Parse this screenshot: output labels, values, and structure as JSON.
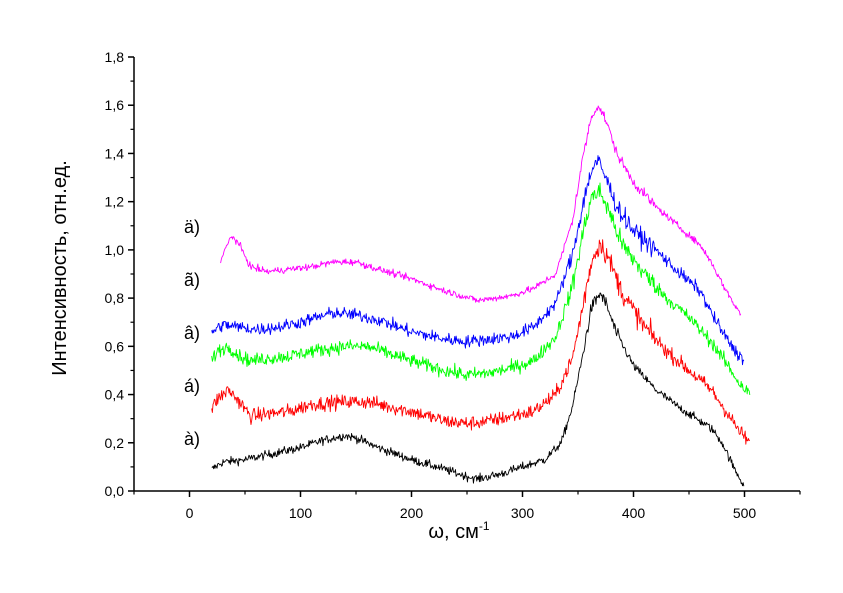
{
  "chart_data": {
    "type": "line",
    "xlabel": "ω, см",
    "xlabel_sup": "-1",
    "ylabel": "Интенсивность, отн.ед.",
    "xlim": [
      -50,
      550
    ],
    "ylim": [
      0,
      1.8
    ],
    "xticks": [
      0,
      100,
      200,
      300,
      400,
      500
    ],
    "xtick_labels": [
      "0",
      "100",
      "200",
      "300",
      "400",
      "500"
    ],
    "yticks": [
      0,
      0.2,
      0.4,
      0.6,
      0.8,
      1.0,
      1.2,
      1.4,
      1.6,
      1.8
    ],
    "ytick_labels": [
      "0,0",
      "0,2",
      "0,4",
      "0,6",
      "0,8",
      "1,0",
      "1,2",
      "1,4",
      "1,6",
      "1,8"
    ],
    "grid": false,
    "legend": "none",
    "series": [
      {
        "label": "à)",
        "color": "#000000",
        "label_x": -5,
        "label_y": 0.19,
        "noise": 0.018,
        "x": [
          20,
          30,
          50,
          70,
          100,
          120,
          140,
          150,
          170,
          200,
          230,
          250,
          260,
          280,
          300,
          320,
          335,
          345,
          355,
          362,
          370,
          375,
          385,
          400,
          420,
          440,
          460,
          470,
          480,
          490,
          500
        ],
        "y": [
          0.09,
          0.12,
          0.13,
          0.15,
          0.18,
          0.21,
          0.23,
          0.22,
          0.18,
          0.13,
          0.09,
          0.06,
          0.05,
          0.07,
          0.1,
          0.13,
          0.2,
          0.35,
          0.58,
          0.76,
          0.82,
          0.78,
          0.65,
          0.52,
          0.42,
          0.35,
          0.29,
          0.26,
          0.2,
          0.1,
          0.02
        ]
      },
      {
        "label": "á)",
        "color": "#ff0000",
        "label_x": -5,
        "label_y": 0.41,
        "noise": 0.03,
        "x": [
          20,
          25,
          35,
          45,
          55,
          70,
          90,
          110,
          140,
          160,
          180,
          200,
          230,
          250,
          270,
          290,
          310,
          330,
          345,
          355,
          362,
          370,
          378,
          390,
          410,
          430,
          450,
          470,
          485,
          495,
          505
        ],
        "y": [
          0.34,
          0.38,
          0.42,
          0.37,
          0.31,
          0.32,
          0.33,
          0.36,
          0.37,
          0.37,
          0.35,
          0.33,
          0.29,
          0.28,
          0.29,
          0.31,
          0.33,
          0.4,
          0.55,
          0.78,
          0.95,
          1.03,
          0.96,
          0.82,
          0.68,
          0.58,
          0.5,
          0.42,
          0.32,
          0.25,
          0.2
        ]
      },
      {
        "label": "â)",
        "color": "#00ff00",
        "label_x": -5,
        "label_y": 0.63,
        "noise": 0.028,
        "x": [
          20,
          25,
          35,
          45,
          55,
          70,
          90,
          110,
          140,
          160,
          180,
          200,
          230,
          250,
          270,
          290,
          310,
          330,
          345,
          355,
          362,
          370,
          378,
          390,
          410,
          430,
          450,
          470,
          485,
          495,
          505
        ],
        "y": [
          0.54,
          0.58,
          0.6,
          0.56,
          0.54,
          0.55,
          0.56,
          0.58,
          0.6,
          0.6,
          0.57,
          0.54,
          0.5,
          0.48,
          0.49,
          0.51,
          0.54,
          0.64,
          0.85,
          1.08,
          1.22,
          1.24,
          1.16,
          1.02,
          0.9,
          0.8,
          0.72,
          0.62,
          0.52,
          0.45,
          0.4
        ]
      },
      {
        "label": "ã)",
        "color": "#0000ff",
        "label_x": -5,
        "label_y": 0.85,
        "noise": 0.026,
        "x": [
          20,
          30,
          45,
          60,
          80,
          100,
          130,
          150,
          170,
          200,
          230,
          250,
          270,
          290,
          310,
          330,
          345,
          355,
          362,
          368,
          375,
          385,
          400,
          420,
          440,
          460,
          470,
          480,
          490,
          500
        ],
        "y": [
          0.66,
          0.69,
          0.68,
          0.67,
          0.68,
          0.7,
          0.74,
          0.73,
          0.71,
          0.66,
          0.63,
          0.62,
          0.63,
          0.64,
          0.68,
          0.78,
          0.98,
          1.2,
          1.33,
          1.37,
          1.3,
          1.18,
          1.08,
          1.0,
          0.91,
          0.83,
          0.74,
          0.66,
          0.59,
          0.54
        ]
      },
      {
        "label": "ä)",
        "color": "#ff00ff",
        "label_x": -5,
        "label_y": 1.07,
        "noise": 0.014,
        "x": [
          28,
          32,
          38,
          45,
          55,
          70,
          90,
          110,
          130,
          150,
          170,
          200,
          230,
          260,
          290,
          310,
          330,
          345,
          355,
          362,
          368,
          375,
          385,
          400,
          420,
          440,
          460,
          470,
          480,
          490,
          497
        ],
        "y": [
          0.95,
          1.0,
          1.06,
          1.02,
          0.93,
          0.91,
          0.92,
          0.93,
          0.95,
          0.95,
          0.92,
          0.88,
          0.83,
          0.79,
          0.81,
          0.84,
          0.9,
          1.12,
          1.4,
          1.55,
          1.6,
          1.54,
          1.4,
          1.28,
          1.18,
          1.1,
          1.02,
          0.95,
          0.86,
          0.78,
          0.73
        ]
      }
    ]
  }
}
